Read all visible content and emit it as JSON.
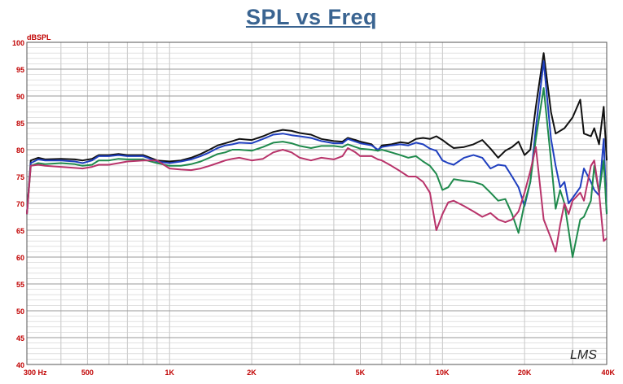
{
  "chart_data": {
    "type": "line",
    "title": "SPL vs Freq",
    "ylabel": "dBSPL",
    "xlabel": "",
    "x_scale": "log",
    "xlim": [
      300,
      40000
    ],
    "ylim": [
      40,
      100
    ],
    "grid": true,
    "legend": "none",
    "watermark": "LMS",
    "y_ticks": [
      40,
      45,
      50,
      55,
      60,
      65,
      70,
      75,
      80,
      85,
      90,
      95,
      100
    ],
    "x_tick_labels": [
      {
        "value": 300,
        "label": "300  Hz"
      },
      {
        "value": 500,
        "label": "500"
      },
      {
        "value": 1000,
        "label": "1K"
      },
      {
        "value": 2000,
        "label": "2K"
      },
      {
        "value": 5000,
        "label": "5K"
      },
      {
        "value": 10000,
        "label": "10K"
      },
      {
        "value": 20000,
        "label": "20K"
      },
      {
        "value": 40000,
        "label": "40K"
      }
    ],
    "colors": {
      "title": "#3a6491",
      "axis_labels": "#c00000",
      "plot_background": "#ffffff",
      "grid": "#b8b8b8"
    },
    "series": [
      {
        "color": "#111111",
        "points": [
          [
            300,
            68
          ],
          [
            310,
            78
          ],
          [
            330,
            78.5
          ],
          [
            350,
            78.2
          ],
          [
            400,
            78.3
          ],
          [
            450,
            78.2
          ],
          [
            480,
            78
          ],
          [
            520,
            78.3
          ],
          [
            550,
            79
          ],
          [
            600,
            79
          ],
          [
            650,
            79.2
          ],
          [
            700,
            79
          ],
          [
            800,
            79
          ],
          [
            900,
            78
          ],
          [
            1000,
            77.8
          ],
          [
            1100,
            78
          ],
          [
            1200,
            78.5
          ],
          [
            1300,
            79.2
          ],
          [
            1400,
            80
          ],
          [
            1500,
            80.8
          ],
          [
            1600,
            81.2
          ],
          [
            1700,
            81.6
          ],
          [
            1800,
            82
          ],
          [
            2000,
            81.8
          ],
          [
            2200,
            82.5
          ],
          [
            2400,
            83.3
          ],
          [
            2600,
            83.7
          ],
          [
            2800,
            83.5
          ],
          [
            3000,
            83.1
          ],
          [
            3300,
            82.8
          ],
          [
            3600,
            82
          ],
          [
            4000,
            81.6
          ],
          [
            4300,
            81.5
          ],
          [
            4500,
            82.2
          ],
          [
            4800,
            81.8
          ],
          [
            5000,
            81.5
          ],
          [
            5500,
            81
          ],
          [
            5800,
            79.8
          ],
          [
            6000,
            80.8
          ],
          [
            6500,
            81
          ],
          [
            7000,
            81.4
          ],
          [
            7500,
            81.2
          ],
          [
            8000,
            82
          ],
          [
            8500,
            82.2
          ],
          [
            9000,
            82
          ],
          [
            9500,
            82.5
          ],
          [
            10000,
            81.8
          ],
          [
            10500,
            81
          ],
          [
            11000,
            80.3
          ],
          [
            12000,
            80.5
          ],
          [
            13000,
            81
          ],
          [
            14000,
            81.8
          ],
          [
            15000,
            80.2
          ],
          [
            16000,
            78.5
          ],
          [
            17000,
            79.8
          ],
          [
            18000,
            80.5
          ],
          [
            19000,
            81.5
          ],
          [
            20000,
            79
          ],
          [
            21000,
            80
          ],
          [
            22000,
            88
          ],
          [
            23500,
            98
          ],
          [
            25000,
            87
          ],
          [
            26000,
            83
          ],
          [
            28000,
            84
          ],
          [
            30000,
            86
          ],
          [
            32000,
            89.3
          ],
          [
            33000,
            83
          ],
          [
            35000,
            82.5
          ],
          [
            36000,
            84
          ],
          [
            37500,
            81
          ],
          [
            39000,
            88
          ],
          [
            40000,
            78
          ]
        ]
      },
      {
        "color": "#1f3fbf",
        "points": [
          [
            300,
            68
          ],
          [
            310,
            77.5
          ],
          [
            330,
            78.2
          ],
          [
            350,
            78
          ],
          [
            400,
            78
          ],
          [
            450,
            77.8
          ],
          [
            480,
            77.5
          ],
          [
            520,
            78
          ],
          [
            550,
            78.8
          ],
          [
            600,
            78.8
          ],
          [
            650,
            79
          ],
          [
            700,
            78.8
          ],
          [
            800,
            78.8
          ],
          [
            900,
            77.8
          ],
          [
            1000,
            77.5
          ],
          [
            1100,
            77.8
          ],
          [
            1200,
            78.2
          ],
          [
            1300,
            78.8
          ],
          [
            1400,
            79.5
          ],
          [
            1500,
            80.3
          ],
          [
            1600,
            80.8
          ],
          [
            1700,
            81
          ],
          [
            1800,
            81.3
          ],
          [
            2000,
            81.2
          ],
          [
            2200,
            82
          ],
          [
            2400,
            82.8
          ],
          [
            2600,
            83
          ],
          [
            2800,
            82.7
          ],
          [
            3000,
            82.5
          ],
          [
            3300,
            82.2
          ],
          [
            3600,
            81.6
          ],
          [
            4000,
            81.2
          ],
          [
            4300,
            81.2
          ],
          [
            4500,
            82
          ],
          [
            4800,
            81.5
          ],
          [
            5000,
            81.2
          ],
          [
            5500,
            80.8
          ],
          [
            5800,
            80
          ],
          [
            6000,
            80.5
          ],
          [
            6500,
            80.8
          ],
          [
            7000,
            81
          ],
          [
            7500,
            80.8
          ],
          [
            8000,
            81.3
          ],
          [
            8500,
            81
          ],
          [
            9000,
            80.2
          ],
          [
            9500,
            79.8
          ],
          [
            10000,
            78
          ],
          [
            10500,
            77.5
          ],
          [
            11000,
            77.2
          ],
          [
            12000,
            78.5
          ],
          [
            13000,
            79
          ],
          [
            14000,
            78.5
          ],
          [
            15000,
            76.5
          ],
          [
            16000,
            77.2
          ],
          [
            17000,
            77
          ],
          [
            18000,
            75
          ],
          [
            19000,
            73
          ],
          [
            20000,
            69.5
          ],
          [
            21000,
            74
          ],
          [
            22000,
            84
          ],
          [
            23500,
            96.5
          ],
          [
            25000,
            82
          ],
          [
            26000,
            77
          ],
          [
            27000,
            73
          ],
          [
            28000,
            74
          ],
          [
            29000,
            70
          ],
          [
            30000,
            71
          ],
          [
            32000,
            73
          ],
          [
            33000,
            76.5
          ],
          [
            35000,
            74
          ],
          [
            36000,
            72.5
          ],
          [
            37500,
            71.5
          ],
          [
            39000,
            82
          ],
          [
            40000,
            68
          ]
        ]
      },
      {
        "color": "#1f8a4c",
        "points": [
          [
            300,
            68
          ],
          [
            310,
            77
          ],
          [
            330,
            77.5
          ],
          [
            350,
            77.3
          ],
          [
            400,
            77.5
          ],
          [
            450,
            77.3
          ],
          [
            480,
            77
          ],
          [
            520,
            77.2
          ],
          [
            550,
            78
          ],
          [
            600,
            78
          ],
          [
            650,
            78.3
          ],
          [
            700,
            78.2
          ],
          [
            800,
            78.2
          ],
          [
            900,
            77.5
          ],
          [
            1000,
            77
          ],
          [
            1100,
            77
          ],
          [
            1200,
            77.3
          ],
          [
            1300,
            77.8
          ],
          [
            1400,
            78.5
          ],
          [
            1500,
            79.2
          ],
          [
            1600,
            79.5
          ],
          [
            1700,
            80
          ],
          [
            1800,
            80
          ],
          [
            2000,
            79.8
          ],
          [
            2200,
            80.5
          ],
          [
            2400,
            81.3
          ],
          [
            2600,
            81.5
          ],
          [
            2800,
            81.2
          ],
          [
            3000,
            80.7
          ],
          [
            3300,
            80.3
          ],
          [
            3600,
            80.7
          ],
          [
            4000,
            80.7
          ],
          [
            4300,
            80.5
          ],
          [
            4500,
            81
          ],
          [
            4800,
            80.5
          ],
          [
            5000,
            80.2
          ],
          [
            5500,
            80
          ],
          [
            5800,
            79.8
          ],
          [
            6000,
            80
          ],
          [
            6500,
            79.5
          ],
          [
            7000,
            79
          ],
          [
            7500,
            78.5
          ],
          [
            8000,
            78.8
          ],
          [
            8500,
            77.8
          ],
          [
            9000,
            77
          ],
          [
            9500,
            75.5
          ],
          [
            10000,
            72.5
          ],
          [
            10500,
            73
          ],
          [
            11000,
            74.5
          ],
          [
            12000,
            74.2
          ],
          [
            13000,
            74
          ],
          [
            14000,
            73.5
          ],
          [
            15000,
            72
          ],
          [
            16000,
            70.5
          ],
          [
            17000,
            70.8
          ],
          [
            18000,
            68
          ],
          [
            19000,
            64.5
          ],
          [
            20000,
            70
          ],
          [
            21000,
            74
          ],
          [
            22000,
            82
          ],
          [
            23500,
            91.5
          ],
          [
            25000,
            78
          ],
          [
            26000,
            69
          ],
          [
            27000,
            72.5
          ],
          [
            28000,
            70
          ],
          [
            29000,
            65
          ],
          [
            30000,
            60
          ],
          [
            32000,
            67
          ],
          [
            33000,
            67.5
          ],
          [
            35000,
            70.5
          ],
          [
            36000,
            77
          ],
          [
            37500,
            72
          ],
          [
            39000,
            78
          ],
          [
            40000,
            68
          ]
        ]
      },
      {
        "color": "#b8336a",
        "points": [
          [
            300,
            68
          ],
          [
            310,
            77
          ],
          [
            330,
            77.2
          ],
          [
            350,
            77
          ],
          [
            400,
            76.8
          ],
          [
            450,
            76.6
          ],
          [
            480,
            76.5
          ],
          [
            520,
            76.8
          ],
          [
            550,
            77.2
          ],
          [
            600,
            77.2
          ],
          [
            650,
            77.5
          ],
          [
            700,
            77.8
          ],
          [
            800,
            78
          ],
          [
            900,
            78
          ],
          [
            1000,
            76.5
          ],
          [
            1100,
            76.3
          ],
          [
            1200,
            76.2
          ],
          [
            1300,
            76.5
          ],
          [
            1400,
            77
          ],
          [
            1500,
            77.5
          ],
          [
            1600,
            78
          ],
          [
            1700,
            78.3
          ],
          [
            1800,
            78.5
          ],
          [
            2000,
            78
          ],
          [
            2200,
            78.3
          ],
          [
            2400,
            79.5
          ],
          [
            2600,
            80
          ],
          [
            2800,
            79.5
          ],
          [
            3000,
            78.5
          ],
          [
            3300,
            78
          ],
          [
            3600,
            78.5
          ],
          [
            4000,
            78.2
          ],
          [
            4300,
            78.8
          ],
          [
            4500,
            80.3
          ],
          [
            4800,
            79.5
          ],
          [
            5000,
            78.8
          ],
          [
            5500,
            78.8
          ],
          [
            5800,
            78.2
          ],
          [
            6000,
            78
          ],
          [
            6500,
            77
          ],
          [
            7000,
            76
          ],
          [
            7500,
            75
          ],
          [
            8000,
            75
          ],
          [
            8500,
            74
          ],
          [
            9000,
            72
          ],
          [
            9500,
            65
          ],
          [
            10000,
            68
          ],
          [
            10500,
            70.2
          ],
          [
            11000,
            70.5
          ],
          [
            12000,
            69.5
          ],
          [
            13000,
            68.5
          ],
          [
            14000,
            67.5
          ],
          [
            15000,
            68.2
          ],
          [
            16000,
            67
          ],
          [
            17000,
            66.5
          ],
          [
            18000,
            67
          ],
          [
            19000,
            68.5
          ],
          [
            20000,
            72
          ],
          [
            21000,
            76
          ],
          [
            22000,
            80.5
          ],
          [
            23500,
            67
          ],
          [
            25000,
            63.5
          ],
          [
            26000,
            61
          ],
          [
            27000,
            66
          ],
          [
            28000,
            70
          ],
          [
            29000,
            68
          ],
          [
            30000,
            70.5
          ],
          [
            32000,
            72
          ],
          [
            33000,
            70.5
          ],
          [
            35000,
            77
          ],
          [
            36000,
            78
          ],
          [
            37500,
            72
          ],
          [
            39000,
            63
          ],
          [
            40000,
            63.5
          ]
        ]
      }
    ]
  }
}
